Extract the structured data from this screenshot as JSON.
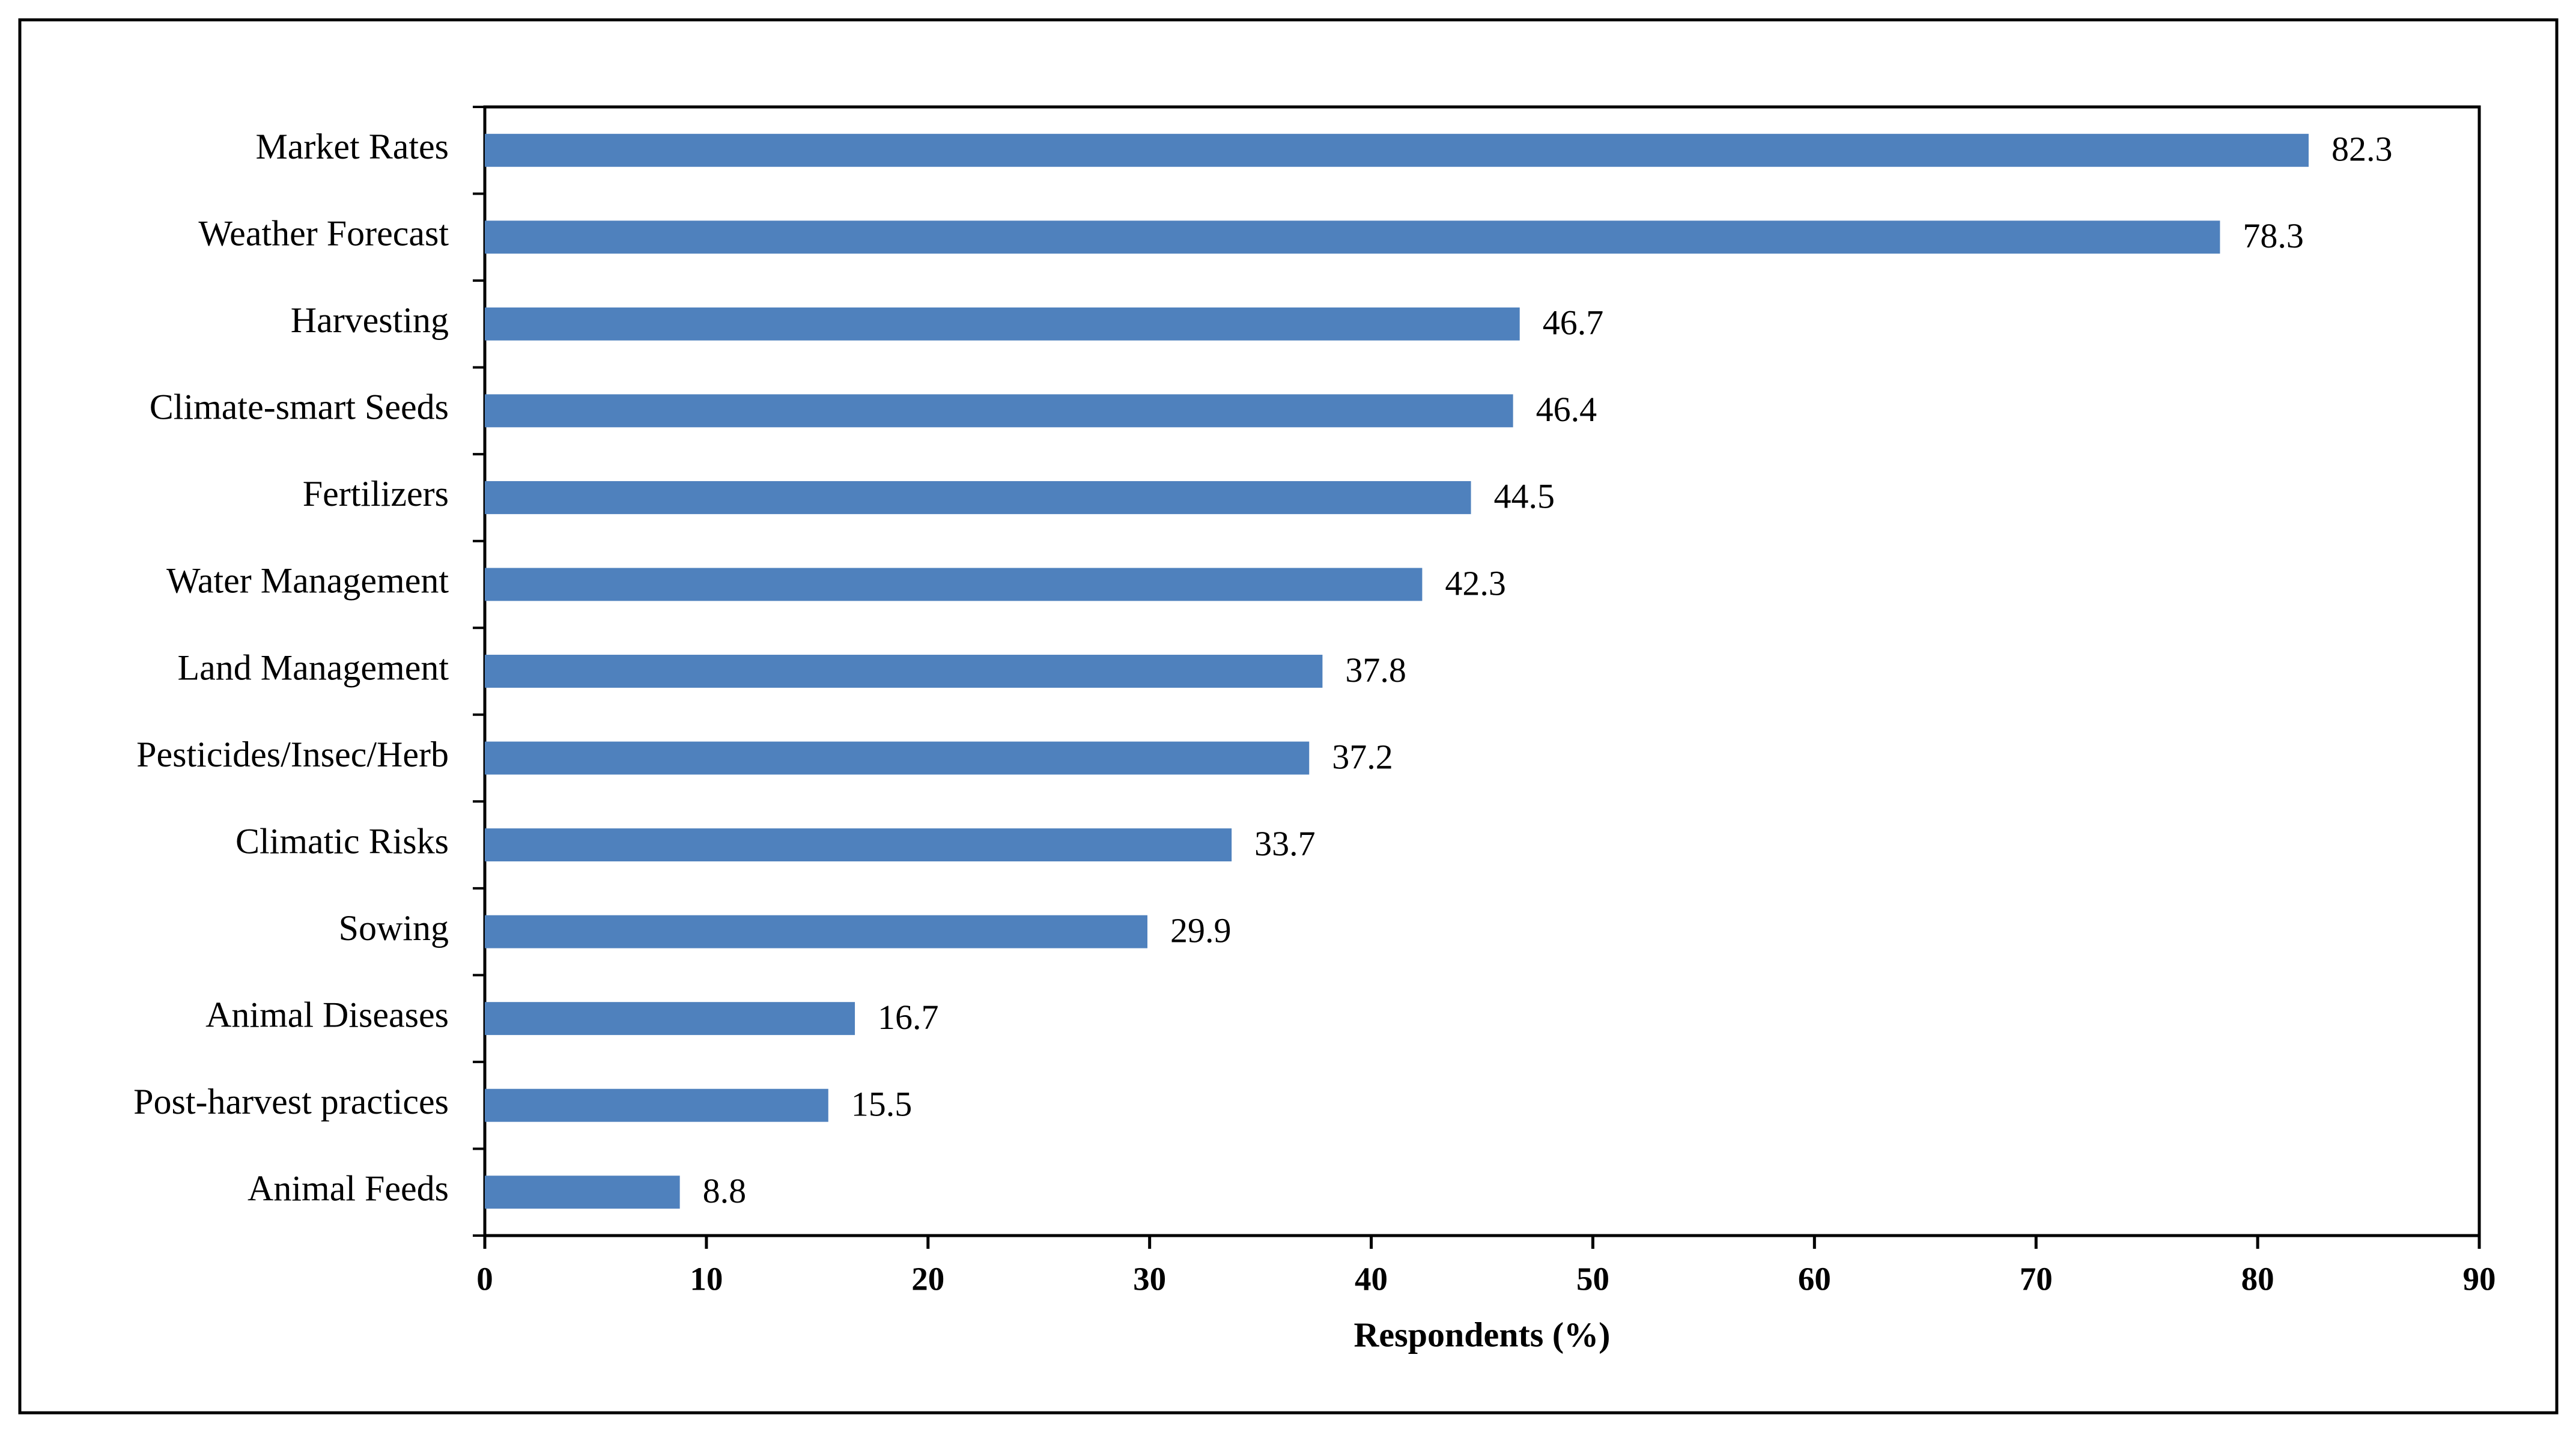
{
  "chart_data": {
    "type": "bar",
    "orientation": "horizontal",
    "x_label": "Respondents (%)",
    "categories": [
      "Market Rates",
      "Weather Forecast",
      "Harvesting",
      "Climate-smart Seeds",
      "Fertilizers",
      "Water Management",
      "Land Management",
      "Pesticides/Insec/Herb",
      "Climatic Risks",
      "Sowing",
      "Animal Diseases",
      "Post-harvest practices",
      "Animal Feeds"
    ],
    "values": [
      82.3,
      78.3,
      46.7,
      46.4,
      44.5,
      42.3,
      37.8,
      37.2,
      33.7,
      29.9,
      16.7,
      15.5,
      8.8
    ],
    "color": "#4f81bd",
    "xlim": [
      0,
      90
    ],
    "xticks": [
      0,
      10,
      20,
      30,
      40,
      50,
      60,
      70,
      80,
      90
    ],
    "grid": false
  }
}
